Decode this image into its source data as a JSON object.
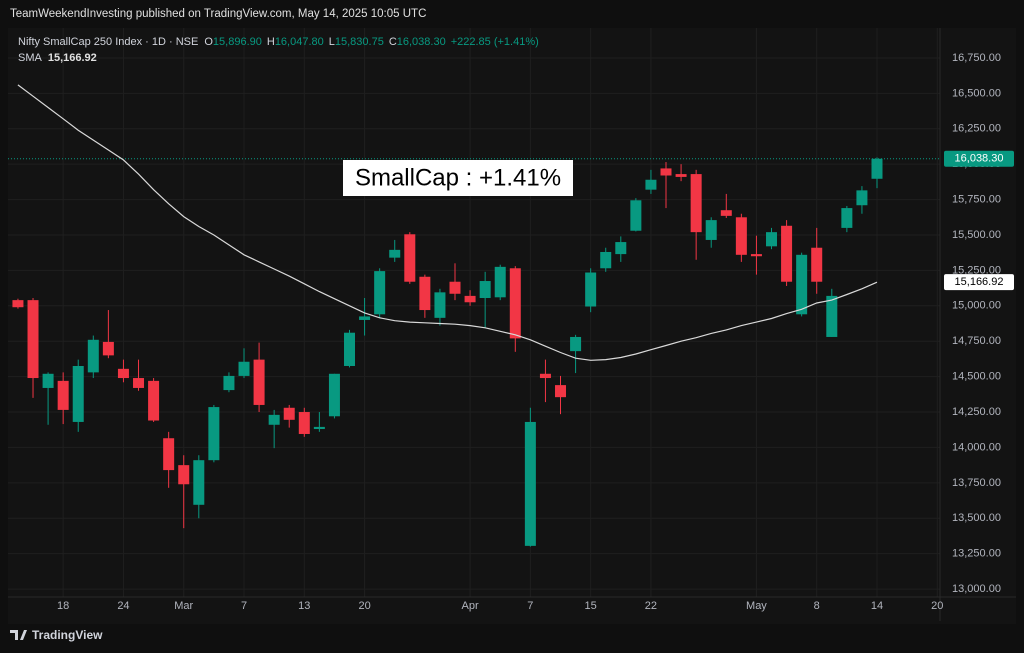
{
  "header": "TeamWeekendInvesting published on TradingView.com, May 14, 2025 10:05 UTC",
  "chart_data": {
    "type": "candlestick",
    "symbol": "Nifty SmallCap 250 Index · 1D · NSE",
    "legend": [
      {
        "label": "O",
        "value": "15,896.90"
      },
      {
        "label": "H",
        "value": "16,047.80"
      },
      {
        "label": "L",
        "value": "15,830.75"
      },
      {
        "label": "C",
        "value": "16,038.30"
      }
    ],
    "change": "+222.85 (+1.41%)",
    "annotation": "SmallCap : +1.41%",
    "up_color": "#089981",
    "down_color": "#f23645",
    "open": [
      15040,
      15040,
      14420,
      14470,
      14180,
      14530,
      14745,
      14555,
      14490,
      14470,
      14065,
      13875,
      13595,
      13910,
      14405,
      14505,
      14620,
      14160,
      14280,
      14250,
      14130,
      14220,
      14575,
      14900,
      14940,
      15340,
      15505,
      15205,
      14915,
      15170,
      15070,
      15055,
      15060,
      15265,
      13305,
      14520,
      14440,
      14680,
      14995,
      15265,
      15365,
      15530,
      15820,
      15970,
      15930,
      15930,
      15465,
      15675,
      15625,
      15365,
      15420,
      15565,
      14940,
      15410,
      14780,
      15550,
      15710,
      15896.9
    ],
    "high": [
      15050,
      15055,
      14530,
      14530,
      14620,
      14790,
      14970,
      14620,
      14620,
      14490,
      14110,
      13945,
      13945,
      14300,
      14530,
      14700,
      14740,
      14265,
      14300,
      14280,
      14250,
      14520,
      14830,
      15055,
      15265,
      15465,
      15520,
      15220,
      15120,
      15300,
      15110,
      15240,
      15290,
      15280,
      14280,
      14620,
      14505,
      14795,
      15265,
      15410,
      15490,
      15760,
      15960,
      16015,
      16000,
      15960,
      15625,
      15790,
      15650,
      15495,
      15550,
      15605,
      15375,
      15550,
      15120,
      15705,
      15845,
      16047.8
    ],
    "low": [
      14980,
      14350,
      14160,
      14165,
      14110,
      14490,
      14630,
      14460,
      14400,
      14180,
      13715,
      13430,
      13500,
      13895,
      14390,
      14490,
      14250,
      13995,
      14140,
      14075,
      14110,
      14205,
      14565,
      14790,
      14915,
      15310,
      15155,
      14915,
      14860,
      15040,
      15000,
      14845,
      15040,
      14675,
      13300,
      14320,
      14235,
      14525,
      14955,
      15240,
      15310,
      15525,
      15790,
      15690,
      15880,
      15325,
      15410,
      15620,
      15310,
      15220,
      15400,
      15140,
      14925,
      15085,
      14780,
      15520,
      15650,
      15830.75
    ],
    "close": [
      14990,
      14490,
      14520,
      14265,
      14575,
      14760,
      14650,
      14490,
      14420,
      14190,
      13840,
      13740,
      13910,
      14285,
      14505,
      14605,
      14300,
      14230,
      14195,
      14095,
      14145,
      14520,
      14810,
      14925,
      15245,
      15395,
      15170,
      14970,
      15095,
      15085,
      15025,
      15175,
      15275,
      14770,
      14180,
      14490,
      14355,
      14780,
      15235,
      15380,
      15450,
      15745,
      15890,
      15920,
      15910,
      15520,
      15605,
      15635,
      15360,
      15350,
      15520,
      15170,
      15360,
      15170,
      15070,
      15690,
      15815,
      16038.3
    ],
    "sma": {
      "name": "SMA",
      "color": "#d9d9d9",
      "value_label": "15,166.92",
      "values": [
        16560,
        16480,
        16400,
        16320,
        16240,
        16170,
        16100,
        16030,
        15930,
        15820,
        15720,
        15630,
        15560,
        15500,
        15430,
        15360,
        15310,
        15260,
        15210,
        15155,
        15100,
        15050,
        15000,
        14950,
        14915,
        14895,
        14885,
        14880,
        14875,
        14870,
        14860,
        14845,
        14820,
        14795,
        14760,
        14715,
        14670,
        14630,
        14615,
        14620,
        14635,
        14660,
        14690,
        14720,
        14750,
        14775,
        14805,
        14830,
        14860,
        14885,
        14910,
        14945,
        14975,
        15020,
        15040,
        15080,
        15120,
        15166.92
      ]
    },
    "xlim": [
      -0.66,
      61.18
    ],
    "xticks": [
      {
        "value": 3,
        "label": "18"
      },
      {
        "value": 7,
        "label": "24"
      },
      {
        "value": 11,
        "label": "Mar"
      },
      {
        "value": 15,
        "label": "7"
      },
      {
        "value": 19,
        "label": "13"
      },
      {
        "value": 23,
        "label": "20"
      },
      {
        "value": 30,
        "label": "Apr"
      },
      {
        "value": 34,
        "label": "7"
      },
      {
        "value": 38,
        "label": "15"
      },
      {
        "value": 42,
        "label": "22"
      },
      {
        "value": 49,
        "label": "May"
      },
      {
        "value": 53,
        "label": "8"
      },
      {
        "value": 57,
        "label": "14"
      },
      {
        "value": 61,
        "label": "20"
      }
    ],
    "ylim": [
      12944,
      16912
    ],
    "yticks": [
      {
        "value": 13000,
        "label": "13,000.00"
      },
      {
        "value": 13250,
        "label": "13,250.00"
      },
      {
        "value": 13500,
        "label": "13,500.00"
      },
      {
        "value": 13750,
        "label": "13,750.00"
      },
      {
        "value": 14000,
        "label": "14,000.00"
      },
      {
        "value": 14250,
        "label": "14,250.00"
      },
      {
        "value": 14500,
        "label": "14,500.00"
      },
      {
        "value": 14750,
        "label": "14,750.00"
      },
      {
        "value": 15000,
        "label": "15,000.00"
      },
      {
        "value": 15250,
        "label": "15,250.00"
      },
      {
        "value": 15500,
        "label": "15,500.00"
      },
      {
        "value": 15750,
        "label": "15,750.00"
      },
      {
        "value": 16000,
        "label": "16,000.00"
      },
      {
        "value": 16250,
        "label": "16,250.00"
      },
      {
        "value": 16500,
        "label": "16,500.00"
      },
      {
        "value": 16750,
        "label": "16,750.00"
      }
    ],
    "grid": true,
    "footer": "TradingView"
  }
}
